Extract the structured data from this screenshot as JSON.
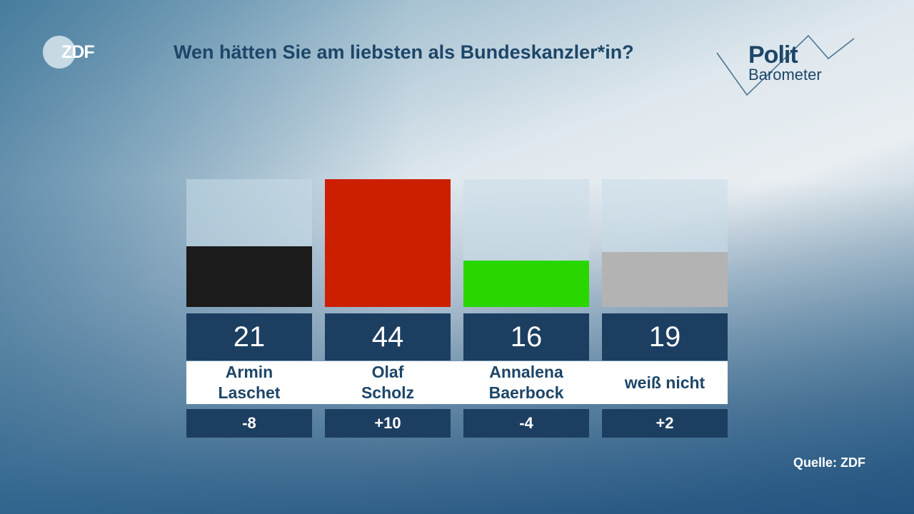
{
  "logo_left": "ZDF",
  "logo_right": {
    "line1": "Polit",
    "line2": "Barometer"
  },
  "chart_data": {
    "type": "bar",
    "title": "Wen hätten Sie am liebsten als Bundeskanzler*in?",
    "categories": [
      [
        "Armin",
        "Laschet"
      ],
      [
        "Olaf",
        "Scholz"
      ],
      [
        "Annalena",
        "Baerbock"
      ],
      [
        "weiß nicht"
      ]
    ],
    "values": [
      21,
      44,
      16,
      19
    ],
    "value_labels": [
      "21",
      "44",
      "16",
      "19"
    ],
    "changes": [
      "-8",
      "+10",
      "-4",
      "+2"
    ],
    "colors": [
      "#1b1b1b",
      "#cc1f00",
      "#2ad600",
      "#b3b3b3"
    ],
    "ylim": [
      0,
      44
    ],
    "grid": false
  },
  "source": "Quelle: ZDF"
}
